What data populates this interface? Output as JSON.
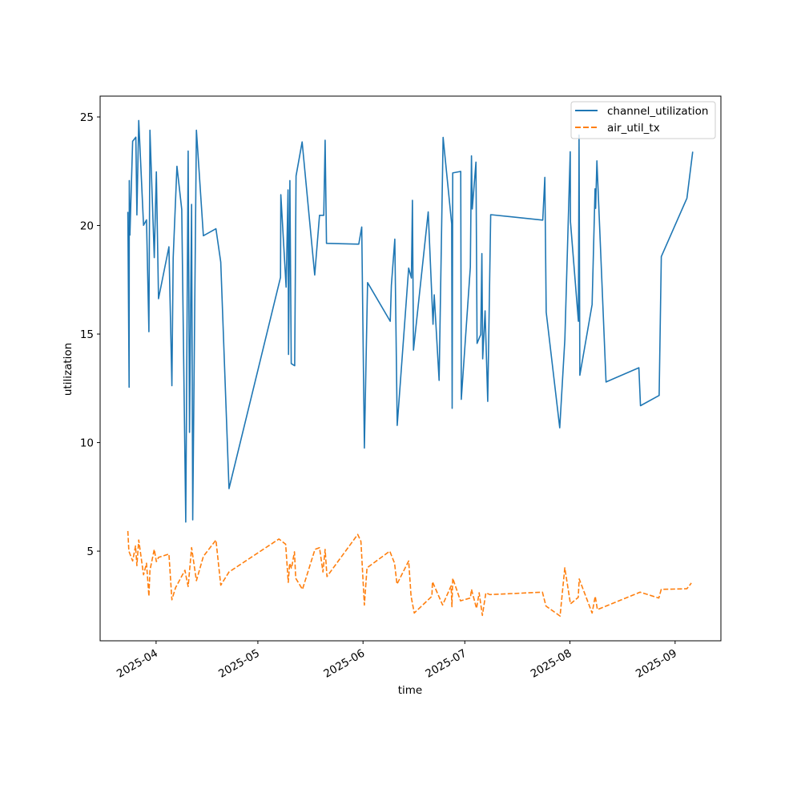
{
  "chart_data": {
    "type": "line",
    "title": "",
    "xlabel": "time",
    "ylabel": "utilization",
    "x_unit": "days since 2025-04-01",
    "xlim": [
      -16.5,
      166.5
    ],
    "ylim": [
      0.87,
      25.96
    ],
    "grid": false,
    "legend_placement": "top-right",
    "x_ticks": [
      {
        "value": 0,
        "label": "2025-04"
      },
      {
        "value": 30,
        "label": "2025-05"
      },
      {
        "value": 61,
        "label": "2025-06"
      },
      {
        "value": 91,
        "label": "2025-07"
      },
      {
        "value": 122,
        "label": "2025-08"
      },
      {
        "value": 153,
        "label": "2025-09"
      }
    ],
    "y_ticks": [
      {
        "value": 5,
        "label": "5"
      },
      {
        "value": 10,
        "label": "10"
      },
      {
        "value": 15,
        "label": "15"
      },
      {
        "value": 20,
        "label": "20"
      },
      {
        "value": 25,
        "label": "25"
      }
    ],
    "series": [
      {
        "name": "channel_utilization",
        "color": "#1f77b4",
        "style": "solid",
        "x": [
          -8.34,
          -7.96,
          -7.91,
          -7.72,
          -6.92,
          -5.97,
          -5.67,
          -5.12,
          -3.71,
          -2.83,
          -2.13,
          -1.82,
          -0.54,
          0.07,
          0.71,
          3.78,
          4.65,
          5.03,
          6.14,
          7.56,
          8.74,
          9.45,
          9.85,
          10.46,
          10.79,
          11.88,
          13.93,
          17.64,
          19.06,
          21.49,
          36.67,
          36.77,
          38.32,
          38.89,
          39.03,
          39.43,
          39.83,
          40.85,
          41.25,
          43.05,
          46.75,
          48.17,
          49.42,
          49.82,
          50.22,
          59.74,
          60.61,
          61.39,
          62.34,
          69.02,
          69.35,
          70.37,
          71.07,
          74.45,
          75.25,
          75.56,
          75.87,
          80.21,
          81.63,
          82.0,
          83.42,
          84.6,
          87.13,
          87.29,
          87.44,
          89.8,
          89.97,
          92.63,
          92.96,
          93.2,
          94.29,
          94.62,
          95.7,
          96.03,
          96.27,
          96.98,
          97.76,
          98.63,
          113.98,
          114.59,
          114.99,
          119.0,
          120.5,
          122.08,
          122.15,
          124.5,
          124.67,
          124.91,
          128.52,
          129.4,
          129.56,
          129.94,
          132.63,
          142.31,
          142.79,
          148.29,
          148.93,
          156.48,
          158.2
        ],
        "y": [
          20.63,
          12.55,
          22.07,
          19.56,
          23.88,
          24.07,
          20.49,
          24.84,
          20.01,
          20.26,
          15.11,
          24.39,
          18.52,
          22.47,
          16.63,
          19.02,
          12.62,
          18.5,
          22.73,
          20.74,
          6.34,
          23.43,
          10.47,
          20.97,
          6.44,
          24.39,
          19.53,
          19.85,
          18.31,
          7.88,
          17.61,
          21.42,
          17.16,
          21.64,
          14.06,
          22.07,
          13.64,
          13.54,
          22.28,
          23.85,
          17.72,
          20.47,
          20.47,
          23.93,
          19.18,
          19.14,
          19.93,
          9.75,
          17.37,
          15.59,
          17.24,
          19.37,
          10.79,
          18.04,
          17.58,
          21.16,
          14.26,
          20.63,
          15.45,
          16.81,
          12.87,
          24.06,
          20.07,
          11.58,
          22.42,
          22.49,
          11.99,
          18.09,
          23.21,
          20.76,
          22.92,
          14.57,
          14.98,
          18.71,
          13.86,
          16.07,
          11.9,
          20.5,
          20.25,
          22.22,
          16.01,
          10.68,
          14.76,
          23.4,
          20.17,
          15.59,
          24.17,
          13.1,
          16.36,
          21.69,
          20.79,
          22.98,
          12.79,
          13.45,
          11.7,
          12.17,
          18.57,
          21.26,
          23.4
        ]
      },
      {
        "name": "air_util_tx",
        "color": "#ff7f0e",
        "style": "dashed",
        "x": [
          -8.34,
          -8.03,
          -6.92,
          -6.07,
          -5.67,
          -5.12,
          -3.71,
          -2.83,
          -2.13,
          -1.82,
          -0.54,
          0.07,
          0.71,
          3.78,
          4.65,
          5.74,
          8.5,
          8.74,
          9.45,
          10.46,
          11.88,
          13.93,
          17.64,
          19.06,
          21.49,
          36.2,
          38.18,
          38.96,
          39.36,
          39.9,
          40.78,
          41.16,
          43.14,
          46.82,
          48.17,
          49.19,
          49.82,
          50.37,
          59.43,
          60.38,
          61.39,
          62.17,
          68.88,
          70.29,
          71.0,
          74.45,
          75.16,
          76.1,
          81.3,
          81.46,
          84.46,
          86.97,
          87.2,
          87.44,
          89.73,
          92.63,
          92.96,
          94.45,
          95.23,
          96.17,
          97.21,
          98.39,
          113.88,
          114.92,
          119.08,
          120.49,
          122.15,
          124.44,
          124.74,
          128.52,
          129.46,
          130.1,
          142.69,
          148.21,
          148.92,
          156.47,
          157.79
        ],
        "y": [
          5.93,
          5.0,
          4.55,
          5.24,
          4.33,
          5.51,
          3.91,
          4.44,
          2.92,
          4.12,
          5.08,
          4.52,
          4.71,
          4.87,
          2.76,
          3.32,
          4.12,
          3.91,
          3.37,
          5.16,
          3.64,
          4.76,
          5.51,
          3.43,
          4.04,
          5.56,
          5.32,
          3.56,
          4.44,
          4.2,
          4.97,
          3.75,
          3.24,
          5.08,
          5.16,
          4.04,
          5.08,
          3.83,
          5.77,
          5.45,
          2.52,
          4.23,
          5.0,
          4.44,
          3.48,
          4.55,
          2.92,
          2.15,
          2.92,
          3.59,
          2.52,
          3.4,
          2.44,
          3.75,
          2.71,
          2.84,
          3.24,
          2.36,
          3.08,
          2.04,
          3.08,
          3.0,
          3.11,
          2.47,
          2.01,
          4.23,
          2.57,
          2.87,
          3.72,
          2.15,
          2.92,
          2.31,
          3.11,
          2.84,
          3.24,
          3.27,
          3.53
        ]
      }
    ]
  }
}
